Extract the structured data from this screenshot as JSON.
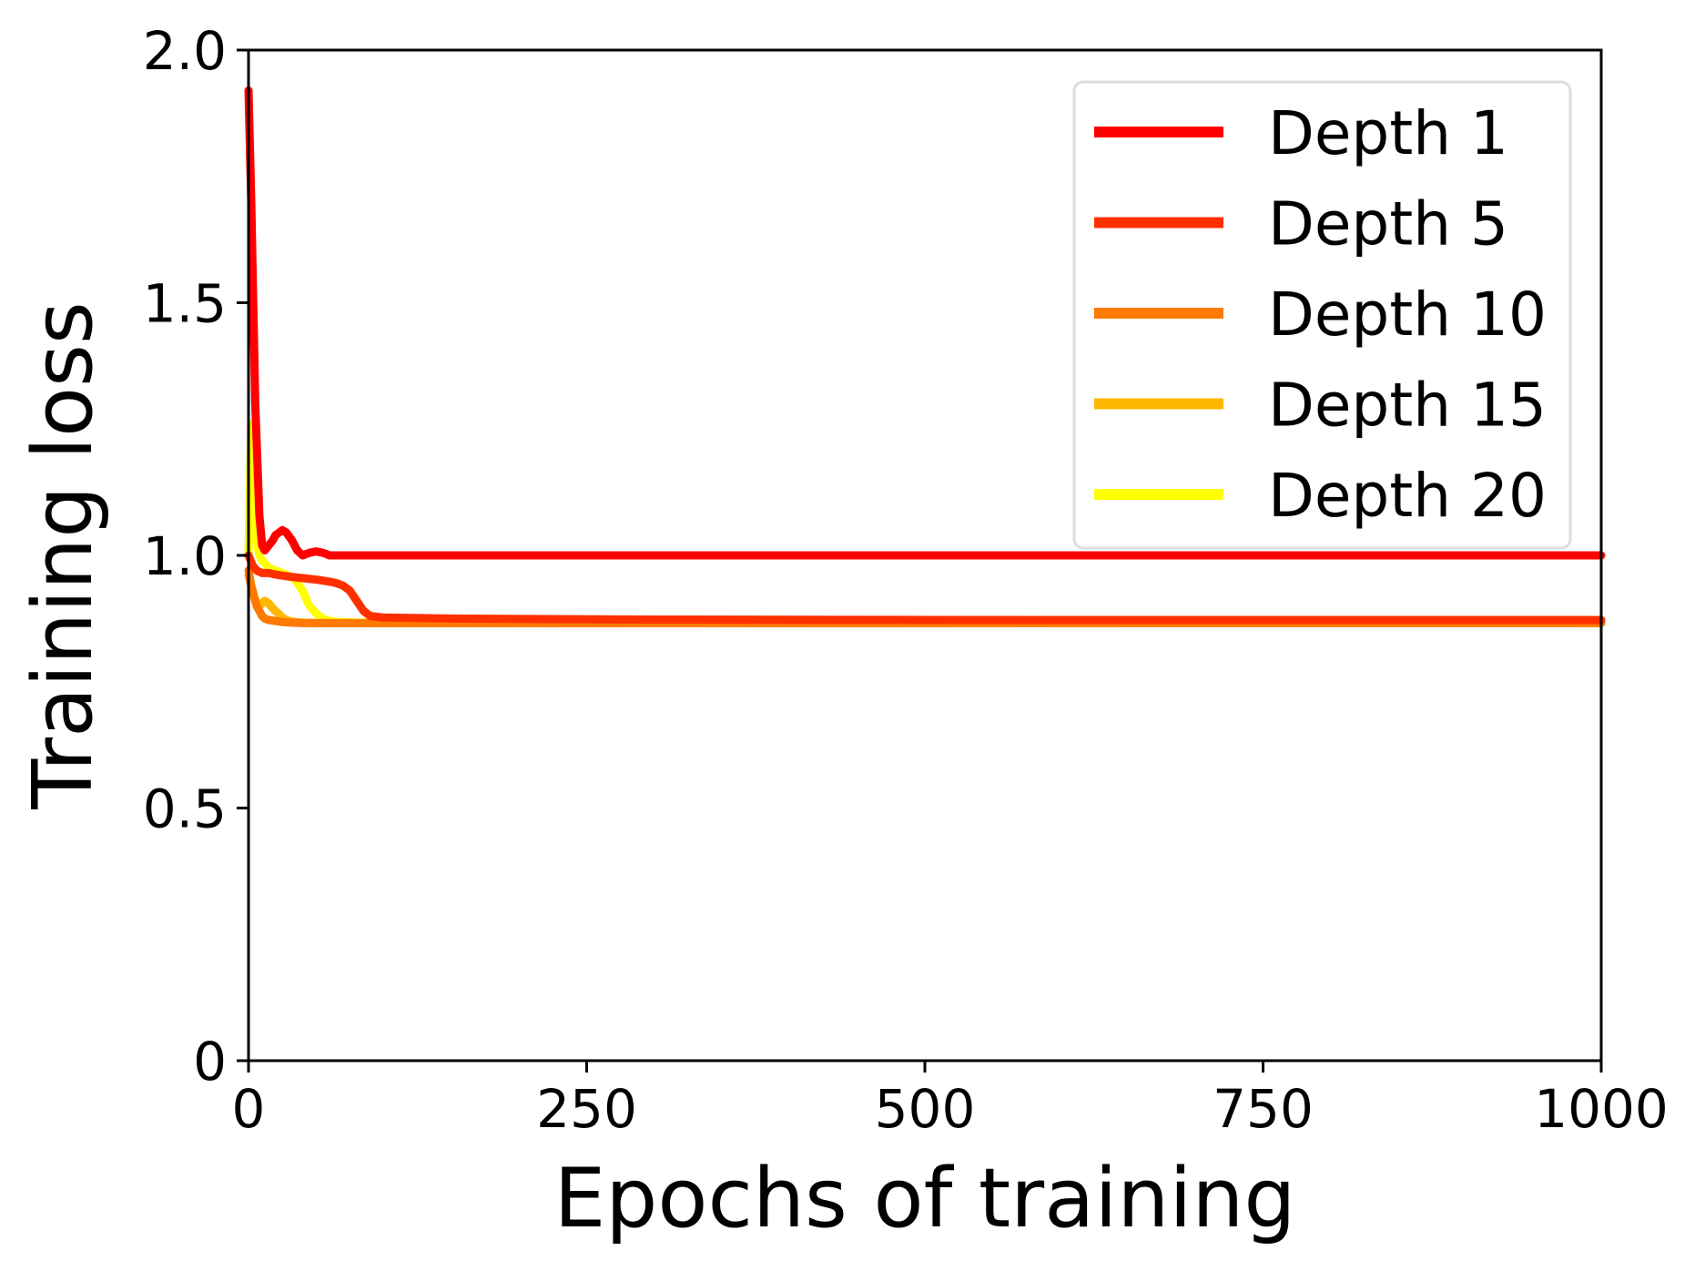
{
  "chart_data": {
    "type": "line",
    "title": "",
    "xlabel": "Epochs of training",
    "ylabel": "Training loss",
    "xlim": [
      0,
      1000
    ],
    "ylim": [
      0,
      2.0
    ],
    "xticks": [
      0,
      250,
      500,
      750,
      1000
    ],
    "xtick_labels": [
      "0",
      "250",
      "500",
      "750",
      "1000"
    ],
    "yticks": [
      0,
      0.5,
      1.0,
      1.5,
      2.0
    ],
    "ytick_labels": [
      "0",
      "0.5",
      "1.0",
      "1.5",
      "2.0"
    ],
    "grid": false,
    "legend_position": "top-right",
    "series": [
      {
        "name": "Depth 1",
        "color": "#ff0000",
        "x": [
          0,
          2,
          5,
          8,
          10,
          12,
          15,
          18,
          20,
          25,
          28,
          32,
          36,
          40,
          45,
          50,
          55,
          60,
          70,
          80,
          100,
          200,
          400,
          600,
          800,
          1000
        ],
        "y": [
          1.92,
          1.7,
          1.3,
          1.08,
          1.02,
          1.01,
          1.02,
          1.03,
          1.04,
          1.05,
          1.045,
          1.03,
          1.01,
          1.0,
          1.005,
          1.008,
          1.005,
          1.0,
          1.0,
          1.0,
          1.0,
          1.0,
          1.0,
          1.0,
          1.0,
          1.0
        ]
      },
      {
        "name": "Depth 5",
        "color": "#ff3000",
        "x": [
          0,
          3,
          6,
          10,
          15,
          20,
          30,
          40,
          50,
          60,
          65,
          70,
          75,
          80,
          85,
          90,
          100,
          150,
          300,
          600,
          1000
        ],
        "y": [
          1.0,
          0.98,
          0.97,
          0.965,
          0.965,
          0.962,
          0.958,
          0.955,
          0.952,
          0.948,
          0.945,
          0.94,
          0.93,
          0.91,
          0.89,
          0.88,
          0.877,
          0.875,
          0.873,
          0.872,
          0.872
        ]
      },
      {
        "name": "Depth 10",
        "color": "#ff7a00",
        "x": [
          0,
          2,
          4,
          6,
          8,
          10,
          12,
          15,
          20,
          25,
          30,
          40,
          60,
          100,
          300,
          600,
          1000
        ],
        "y": [
          0.97,
          0.94,
          0.92,
          0.9,
          0.89,
          0.88,
          0.875,
          0.872,
          0.87,
          0.868,
          0.867,
          0.866,
          0.866,
          0.866,
          0.866,
          0.866,
          0.866
        ]
      },
      {
        "name": "Depth 15",
        "color": "#ffb800",
        "x": [
          0,
          2,
          4,
          6,
          8,
          10,
          12,
          15,
          18,
          22,
          26,
          30,
          35,
          40,
          50,
          70,
          100,
          300,
          600,
          1000
        ],
        "y": [
          0.96,
          0.94,
          0.92,
          0.905,
          0.9,
          0.905,
          0.91,
          0.905,
          0.895,
          0.885,
          0.875,
          0.87,
          0.868,
          0.867,
          0.866,
          0.866,
          0.866,
          0.866,
          0.866,
          0.866
        ]
      },
      {
        "name": "Depth 20",
        "color": "#ffff00",
        "x": [
          0,
          2,
          4,
          6,
          8,
          10,
          12,
          15,
          20,
          25,
          30,
          35,
          40,
          45,
          50,
          55,
          60,
          70,
          80,
          100,
          300,
          560,
          600,
          880,
          1000
        ],
        "y": [
          1.0,
          1.26,
          1.12,
          1.03,
          1.0,
          0.99,
          0.985,
          0.975,
          0.97,
          0.965,
          0.96,
          0.95,
          0.93,
          0.9,
          0.885,
          0.875,
          0.87,
          0.868,
          0.867,
          0.866,
          0.866,
          0.868,
          0.866,
          0.869,
          0.866
        ]
      }
    ]
  }
}
